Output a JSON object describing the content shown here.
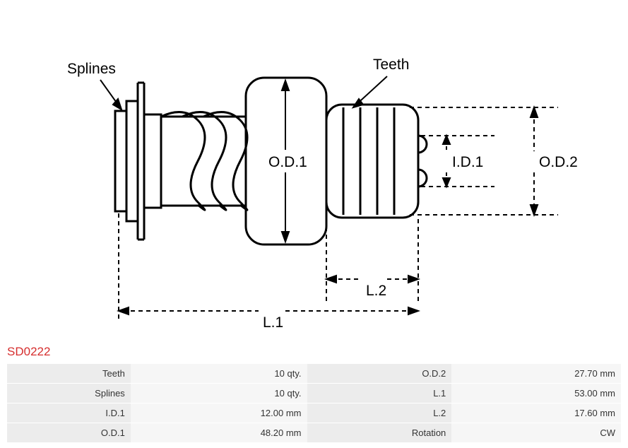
{
  "part_number": "SD0222",
  "diagram": {
    "labels": {
      "splines": "Splines",
      "teeth": "Teeth",
      "od1": "O.D.1",
      "od2": "O.D.2",
      "id1": "I.D.1",
      "l1": "L.1",
      "l2": "L.2"
    },
    "colors": {
      "stroke": "#000000",
      "dash": "#000000",
      "background": "#ffffff"
    },
    "stroke_width": 3,
    "dash_pattern": "6,5"
  },
  "specs": {
    "rows": [
      {
        "label_a": "Teeth",
        "value_a": "10 qty.",
        "label_b": "O.D.2",
        "value_b": "27.70 mm"
      },
      {
        "label_a": "Splines",
        "value_a": "10 qty.",
        "label_b": "L.1",
        "value_b": "53.00 mm"
      },
      {
        "label_a": "I.D.1",
        "value_a": "12.00 mm",
        "label_b": "L.2",
        "value_b": "17.60 mm"
      },
      {
        "label_a": "O.D.1",
        "value_a": "48.20 mm",
        "label_b": "Rotation",
        "value_b": "CW"
      }
    ]
  }
}
